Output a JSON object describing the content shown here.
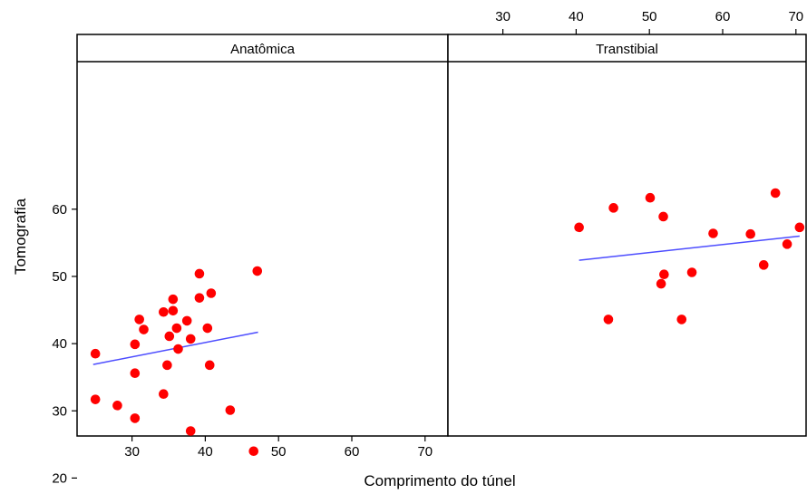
{
  "chart_data": {
    "type": "scatter",
    "xlabel": "Comprimento do túnel",
    "ylabel": "Tomografia",
    "xlim": [
      22.5,
      72.5
    ],
    "ylim": [
      19.5,
      65
    ],
    "x_ticks": [
      30,
      40,
      50,
      60,
      70
    ],
    "y_ticks": [
      20,
      30,
      40,
      50,
      60
    ],
    "grid": false,
    "point_color": "#ff0000",
    "fit_color": "#4d4dff",
    "panels": [
      {
        "label": "Anatômica",
        "points": [
          {
            "x": 25,
            "y": 38.5
          },
          {
            "x": 25,
            "y": 31.7
          },
          {
            "x": 28,
            "y": 30.8
          },
          {
            "x": 30.4,
            "y": 28.9
          },
          {
            "x": 30.4,
            "y": 35.6
          },
          {
            "x": 30.4,
            "y": 39.9
          },
          {
            "x": 31,
            "y": 43.6
          },
          {
            "x": 31.6,
            "y": 42.1
          },
          {
            "x": 34.3,
            "y": 32.5
          },
          {
            "x": 34.3,
            "y": 44.7
          },
          {
            "x": 34.8,
            "y": 36.8
          },
          {
            "x": 35.1,
            "y": 41.1
          },
          {
            "x": 35.6,
            "y": 44.9
          },
          {
            "x": 35.6,
            "y": 46.6
          },
          {
            "x": 36.1,
            "y": 42.3
          },
          {
            "x": 36.3,
            "y": 39.2
          },
          {
            "x": 37.5,
            "y": 43.4
          },
          {
            "x": 38,
            "y": 40.7
          },
          {
            "x": 38,
            "y": 27
          },
          {
            "x": 39.2,
            "y": 46.8
          },
          {
            "x": 39.2,
            "y": 50.4
          },
          {
            "x": 40.3,
            "y": 42.3
          },
          {
            "x": 40.6,
            "y": 36.8
          },
          {
            "x": 40.8,
            "y": 47.5
          },
          {
            "x": 43.4,
            "y": 30.1
          },
          {
            "x": 46.6,
            "y": 24
          },
          {
            "x": 47.1,
            "y": 50.8
          }
        ],
        "fit": {
          "x": [
            24.7,
            47.2
          ],
          "y": [
            36.9,
            41.7
          ]
        }
      },
      {
        "label": "Transtibial",
        "points": [
          {
            "x": 40.4,
            "y": 57.3
          },
          {
            "x": 44.4,
            "y": 43.6
          },
          {
            "x": 45.1,
            "y": 60.2
          },
          {
            "x": 50.1,
            "y": 61.7
          },
          {
            "x": 51.6,
            "y": 48.9
          },
          {
            "x": 51.9,
            "y": 58.9
          },
          {
            "x": 52,
            "y": 50.3
          },
          {
            "x": 54.4,
            "y": 43.6
          },
          {
            "x": 55.8,
            "y": 50.6
          },
          {
            "x": 58.7,
            "y": 56.4
          },
          {
            "x": 63.8,
            "y": 56.3
          },
          {
            "x": 65.6,
            "y": 51.7
          },
          {
            "x": 67.2,
            "y": 62.4
          },
          {
            "x": 68.8,
            "y": 54.8
          },
          {
            "x": 70.5,
            "y": 57.3
          }
        ],
        "fit": {
          "x": [
            40.4,
            70.5
          ],
          "y": [
            52.4,
            56
          ]
        }
      }
    ]
  }
}
